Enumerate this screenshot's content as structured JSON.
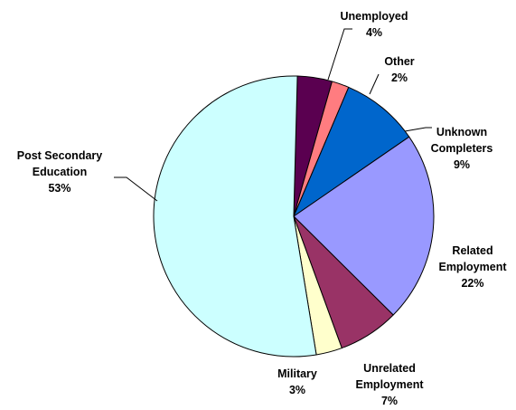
{
  "chart_data": {
    "type": "pie",
    "title": "",
    "slices": [
      {
        "name": "Unemployed",
        "value": 4,
        "label": "4%",
        "color": "#5a0050"
      },
      {
        "name": "Other",
        "value": 2,
        "label": "2%",
        "color": "#ff7c80"
      },
      {
        "name": "Unknown Completers",
        "value": 9,
        "label": "9%",
        "color": "#0066cc"
      },
      {
        "name": "Related Employment",
        "value": 22,
        "label": "22%",
        "color": "#9999ff"
      },
      {
        "name": "Unrelated Employment",
        "value": 7,
        "label": "7%",
        "color": "#993366"
      },
      {
        "name": "Military",
        "value": 3,
        "label": "3%",
        "color": "#ffffcc"
      },
      {
        "name": "Post Secondary Education",
        "value": 53,
        "label": "53%",
        "color": "#ccffff"
      }
    ],
    "label_lines": [
      [
        "Unemployed",
        "4%"
      ],
      [
        "Other",
        "2%"
      ],
      [
        "Unknown",
        "Completers",
        "9%"
      ],
      [
        "Related",
        "Employment",
        "22%"
      ],
      [
        "Unrelated",
        "Employment",
        "7%"
      ],
      [
        "Military",
        "3%"
      ],
      [
        "Post Secondary",
        "Education",
        "53%"
      ]
    ],
    "legend": "none"
  }
}
